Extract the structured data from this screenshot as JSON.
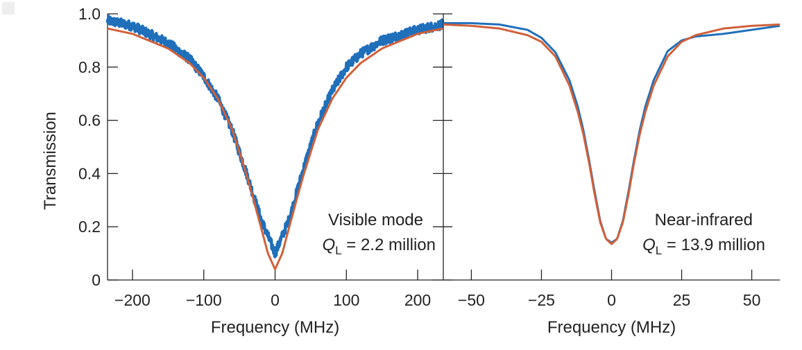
{
  "chart_data": [
    {
      "type": "line",
      "xlabel": "Frequency (MHz)",
      "ylabel": "Transmission",
      "xlim": [
        -235,
        235
      ],
      "ylim": [
        0,
        1.0
      ],
      "xticks": [
        -200,
        -100,
        0,
        100,
        200
      ],
      "xtick_labels": [
        "−200",
        "−100",
        "0",
        "100",
        "200"
      ],
      "yticks": [
        0,
        0.2,
        0.4,
        0.6,
        0.8,
        1.0
      ],
      "ytick_labels": [
        "0",
        "0.2",
        "0.4",
        "0.6",
        "0.8",
        "1.0"
      ],
      "grid": false,
      "annotation": {
        "line1": "Visible mode",
        "q": "Q",
        "q_sub": "L",
        "q_value": " = 2.2 million"
      },
      "series": [
        {
          "role": "measured",
          "color": "#1f6fba",
          "noisy": true,
          "x": [
            -235,
            -200,
            -150,
            -120,
            -100,
            -80,
            -60,
            -40,
            -20,
            0,
            20,
            40,
            60,
            80,
            100,
            120,
            150,
            200,
            235
          ],
          "y": [
            0.975,
            0.955,
            0.89,
            0.83,
            0.765,
            0.68,
            0.56,
            0.4,
            0.23,
            0.1,
            0.23,
            0.42,
            0.59,
            0.71,
            0.8,
            0.85,
            0.9,
            0.94,
            0.96
          ]
        },
        {
          "role": "fit",
          "color": "#d0603a",
          "noisy": false,
          "x": [
            -235,
            -200,
            -150,
            -120,
            -100,
            -80,
            -60,
            -40,
            -30,
            -20,
            -10,
            0,
            10,
            20,
            30,
            40,
            60,
            80,
            100,
            120,
            150,
            200,
            235
          ],
          "y": [
            0.945,
            0.925,
            0.87,
            0.815,
            0.76,
            0.68,
            0.565,
            0.395,
            0.3,
            0.2,
            0.1,
            0.04,
            0.1,
            0.2,
            0.3,
            0.395,
            0.565,
            0.68,
            0.76,
            0.815,
            0.87,
            0.925,
            0.945
          ]
        }
      ]
    },
    {
      "type": "line",
      "xlabel": "Frequency (MHz)",
      "ylabel": "",
      "xlim": [
        -60,
        60
      ],
      "ylim": [
        0,
        1.0
      ],
      "xticks": [
        -50,
        -25,
        0,
        25,
        50
      ],
      "xtick_labels": [
        "−50",
        "−25",
        "0",
        "25",
        "50"
      ],
      "grid": false,
      "annotation": {
        "line1": "Near-infrared",
        "q": "Q",
        "q_sub": "L",
        "q_value": " = 13.9 million"
      },
      "series": [
        {
          "role": "measured",
          "color": "#1f6fba",
          "noisy": false,
          "x": [
            -60,
            -50,
            -40,
            -30,
            -25,
            -20,
            -15,
            -12,
            -10,
            -8,
            -6,
            -4,
            -2,
            0,
            2,
            4,
            6,
            8,
            10,
            12,
            15,
            20,
            25,
            30,
            40,
            50,
            60
          ],
          "y": [
            0.965,
            0.965,
            0.96,
            0.94,
            0.91,
            0.855,
            0.75,
            0.65,
            0.56,
            0.45,
            0.33,
            0.22,
            0.155,
            0.14,
            0.155,
            0.22,
            0.33,
            0.45,
            0.56,
            0.65,
            0.75,
            0.86,
            0.9,
            0.915,
            0.925,
            0.94,
            0.955
          ]
        },
        {
          "role": "fit",
          "color": "#d0603a",
          "noisy": false,
          "x": [
            -60,
            -50,
            -40,
            -30,
            -25,
            -20,
            -15,
            -12,
            -10,
            -8,
            -6,
            -4,
            -2,
            0,
            2,
            4,
            6,
            8,
            10,
            12,
            15,
            20,
            25,
            30,
            40,
            50,
            60
          ],
          "y": [
            0.96,
            0.955,
            0.945,
            0.92,
            0.895,
            0.84,
            0.73,
            0.63,
            0.545,
            0.44,
            0.32,
            0.215,
            0.155,
            0.135,
            0.155,
            0.215,
            0.32,
            0.44,
            0.545,
            0.63,
            0.73,
            0.84,
            0.895,
            0.92,
            0.945,
            0.955,
            0.96
          ]
        }
      ]
    }
  ]
}
